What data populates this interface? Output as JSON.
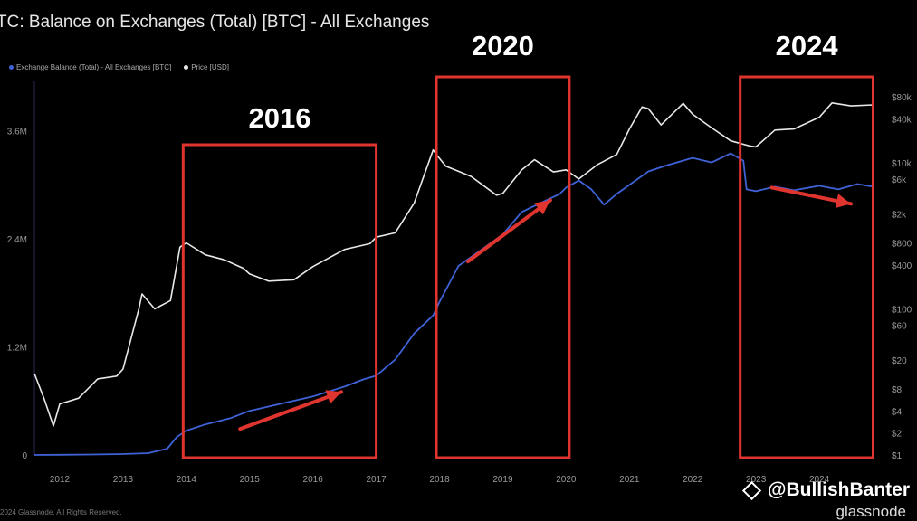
{
  "title": "TC: Balance on Exchanges (Total) [BTC] - All Exchanges",
  "legend": [
    {
      "label": "Exchange Balance (Total) - All Exchanges [BTC]",
      "color": "#3f62d6"
    },
    {
      "label": "Price [USD]",
      "color": "#e8e8e8"
    }
  ],
  "watermark": "@BullishBanter",
  "brand": "glassnode",
  "footer": "2024 Glassnode. All Rights Reserved.",
  "colors": {
    "balance": "#3f62d6",
    "price": "#e8e8e8",
    "highlight": "#e0342f",
    "axis": "#9a9a9a"
  },
  "highlights": [
    {
      "label": "2016",
      "x_start": 2013.95,
      "x_end": 2017.0
    },
    {
      "label": "2020",
      "x_start": 2017.95,
      "x_end": 2020.05
    },
    {
      "label": "2024",
      "x_start": 2022.75,
      "x_end": 2024.85
    }
  ],
  "arrows": [
    {
      "from": [
        2014.85,
        290000
      ],
      "to": [
        2016.45,
        700000
      ]
    },
    {
      "from": [
        2018.45,
        2150000
      ],
      "to": [
        2019.75,
        2830000
      ]
    },
    {
      "from": [
        2023.25,
        2970000
      ],
      "to": [
        2024.5,
        2790000
      ]
    }
  ],
  "chart_data": {
    "type": "line",
    "xlim": [
      2011.6,
      2024.9
    ],
    "x_ticks": [
      "2012",
      "2013",
      "2014",
      "2015",
      "2016",
      "2017",
      "2018",
      "2019",
      "2020",
      "2021",
      "2022",
      "2023",
      "2024"
    ],
    "y_left": {
      "ticks": [
        "0",
        "1.2M",
        "2.4M",
        "3.6M"
      ],
      "tick_values": [
        0,
        1200000,
        2400000,
        3600000
      ],
      "lim": [
        0,
        4150000
      ]
    },
    "y_right": {
      "scale": "log",
      "ticks": [
        "$1",
        "$2",
        "$4",
        "$8",
        "$20",
        "$60",
        "$100",
        "$400",
        "$800",
        "$2k",
        "$6k",
        "$10k",
        "$40k",
        "$80k"
      ],
      "tick_values": [
        1,
        2,
        4,
        8,
        20,
        60,
        100,
        400,
        800,
        2000,
        6000,
        10000,
        40000,
        80000
      ],
      "lim": [
        1,
        130000
      ]
    },
    "grid": false,
    "series": [
      {
        "name": "Exchange Balance (Total) - All Exchanges [BTC]",
        "axis": "left",
        "x": [
          2011.6,
          2012.0,
          2012.5,
          2013.0,
          2013.4,
          2013.7,
          2013.85,
          2014.0,
          2014.3,
          2014.7,
          2015.0,
          2015.5,
          2016.0,
          2016.5,
          2016.8,
          2017.0,
          2017.3,
          2017.6,
          2017.9,
          2018.0,
          2018.3,
          2018.7,
          2019.0,
          2019.3,
          2019.6,
          2019.9,
          2020.0,
          2020.2,
          2020.4,
          2020.6,
          2020.8,
          2021.0,
          2021.3,
          2021.6,
          2022.0,
          2022.3,
          2022.6,
          2022.8,
          2022.85,
          2023.0,
          2023.3,
          2023.6,
          2024.0,
          2024.3,
          2024.6,
          2024.85
        ],
        "values": [
          0,
          2000,
          5000,
          10000,
          20000,
          70000,
          200000,
          270000,
          340000,
          410000,
          490000,
          570000,
          650000,
          760000,
          840000,
          880000,
          1060000,
          1350000,
          1550000,
          1700000,
          2100000,
          2300000,
          2450000,
          2700000,
          2800000,
          2900000,
          2970000,
          3050000,
          2950000,
          2780000,
          2900000,
          3000000,
          3150000,
          3220000,
          3300000,
          3250000,
          3350000,
          3270000,
          2950000,
          2930000,
          2980000,
          2940000,
          2990000,
          2950000,
          3010000,
          2980000
        ]
      },
      {
        "name": "Price [USD]",
        "axis": "right",
        "x": [
          2011.6,
          2011.75,
          2011.9,
          2012.0,
          2012.3,
          2012.6,
          2012.9,
          2013.0,
          2013.25,
          2013.3,
          2013.5,
          2013.75,
          2013.9,
          2014.0,
          2014.3,
          2014.6,
          2014.9,
          2015.0,
          2015.3,
          2015.7,
          2016.0,
          2016.5,
          2016.9,
          2017.0,
          2017.3,
          2017.6,
          2017.9,
          2017.95,
          2018.1,
          2018.5,
          2018.9,
          2019.0,
          2019.3,
          2019.5,
          2019.8,
          2020.0,
          2020.2,
          2020.5,
          2020.8,
          2021.0,
          2021.2,
          2021.3,
          2021.5,
          2021.85,
          2022.0,
          2022.3,
          2022.6,
          2022.9,
          2023.0,
          2023.3,
          2023.6,
          2024.0,
          2024.2,
          2024.5,
          2024.85
        ],
        "values": [
          13,
          6,
          2.5,
          5,
          6,
          11,
          12,
          15,
          100,
          160,
          100,
          130,
          700,
          800,
          550,
          470,
          360,
          300,
          240,
          250,
          380,
          650,
          780,
          960,
          1100,
          2800,
          15000,
          13000,
          9000,
          6500,
          3600,
          3800,
          8000,
          11000,
          7500,
          8000,
          6000,
          9500,
          13000,
          29000,
          58000,
          55000,
          33000,
          65000,
          46000,
          30000,
          20000,
          17000,
          16500,
          28000,
          29000,
          42000,
          66000,
          60000,
          62000
        ]
      }
    ]
  }
}
